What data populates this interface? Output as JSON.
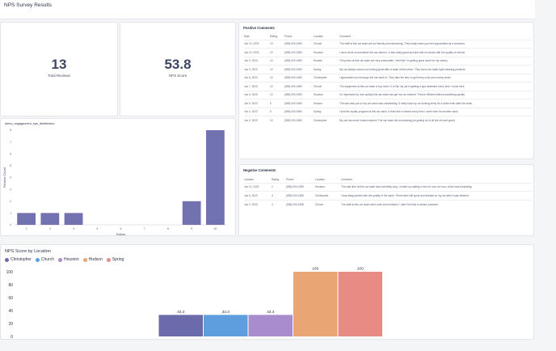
{
  "page": {
    "title": "NPS Survey Results"
  },
  "kpis": [
    {
      "value": "13",
      "label": "Total Reviews"
    },
    {
      "value": "53.8",
      "label": "NPS Score"
    }
  ],
  "positive_comments": {
    "title": "Positive Comments",
    "columns": [
      "Date",
      "Rating",
      "Phone",
      "Location",
      "Comment"
    ],
    "rows": [
      [
        "Jun 10, 2023",
        "10",
        "(555) 000-1550",
        "Church",
        "The staff at this car wash are so friendly and welcoming. They really make you feel appreciated as a customer."
      ],
      [
        "Jun 10, 2023",
        "10",
        "(555) 000-1550",
        "Houston",
        "I have never encountered this car wash in, it was really great and fast with no issues with the quality of service."
      ],
      [
        "Jun 9, 2023",
        "10",
        "(555) 000-1550",
        "Hudson",
        "The prices at this car wash are very reasonable. I feel like I'm getting great value for my money."
      ],
      [
        "Jun 9, 2023",
        "10",
        "(555) 000-1550",
        "Spring",
        "My car always comes out looking great after a wash at this place. They even use water-tight cleaning products."
      ],
      [
        "Jun 8, 2023",
        "10",
        "(555) 000-1550",
        "Christopher",
        "I appreciate how thorough the car wash is. They take the time to get every nook and cranny clean."
      ],
      [
        "Jun 7, 2023",
        "10",
        "(555) 000-1550",
        "Church",
        "The equipment at this car wash is top-notch. It is like my car is getting a spa treatment every time I come here."
      ],
      [
        "Jun 6, 2023",
        "10",
        "(555) 000-1550",
        "Houston",
        "I'm impressed by how quickly this car wash can get my car cleaned. They're efficient without sacrificing quality."
      ],
      [
        "Jun 5, 2023",
        "9",
        "(555) 000-1550",
        "Hudson",
        "The wax they put on my car wash was outstanding. It really kept my car looking shiny for a while even after the wash."
      ],
      [
        "Jun 4, 2023",
        "9",
        "(555) 000-1550",
        "Spring",
        "I love the loyalty program at this car wash. It feels like a reward every time I come here for another wash."
      ],
      [
        "Jun 3, 2023",
        "10",
        "(555) 000-1550",
        "Christopher",
        "My car has never looked cleaner! The car wash did an amazing job getting rid of all the dirt and grime."
      ]
    ]
  },
  "negative_comments": {
    "title": "Negative Comments",
    "columns": [
      "Location",
      "Rating",
      "Phone",
      "Location",
      "Comment"
    ],
    "rows": [
      [
        "Jun 10, 2023",
        "2",
        "(555) 000-1555",
        "Houston",
        "The wait time at this car wash was incredibly long. I ended up waiting in line for over an hour, which was frustrating."
      ],
      [
        "Jun 5, 2023",
        "3",
        "(555) 000-1555",
        "Christopher",
        "I was disappointed with the quality of the wash. There were still spots and streaks on my car after it was finished."
      ],
      [
        "Jun 2, 2023",
        "4",
        "(555) 000-1555",
        "Church",
        "The staff at this car wash were rude and unhelpful. I didn't feel like a valued customer."
      ]
    ]
  },
  "distribution_chart": {
    "title": "demo_engagement_nps_distribution",
    "bar_color": "#7372b0",
    "chart_data": {
      "type": "bar",
      "categories": [
        "2",
        "3",
        "4",
        "5",
        "6",
        "7",
        "8",
        "9",
        "10"
      ],
      "values": [
        1,
        1,
        1,
        0,
        0,
        0,
        0,
        2,
        8
      ],
      "xlabel": "Rating",
      "ylabel": "Review Count",
      "ylim": [
        0,
        8
      ],
      "yticks": [
        "0",
        "1",
        "2",
        "3",
        "4",
        "5",
        "6",
        "7",
        "8"
      ],
      "grid": false
    }
  },
  "location_chart": {
    "title": "NPS Score by Location",
    "chart_data": {
      "type": "bar",
      "categories": [
        "Christopher",
        "Church",
        "Houston",
        "Hudson",
        "Spring"
      ],
      "series": [
        {
          "name": "Christopher",
          "color": "#6b6aaa",
          "value": 33.3,
          "label": "33.3"
        },
        {
          "name": "Church",
          "color": "#5f9ede",
          "value": 33.3,
          "label": "33.3"
        },
        {
          "name": "Houston",
          "color": "#a98ccd",
          "value": 33.3,
          "label": "33.3"
        },
        {
          "name": "Hudson",
          "color": "#e9a574",
          "value": 100,
          "label": "100"
        },
        {
          "name": "Spring",
          "color": "#e88b85",
          "value": 100,
          "label": "100"
        }
      ],
      "ylim": [
        0,
        100
      ],
      "yticks": [
        "0",
        "20",
        "40",
        "60",
        "80",
        "100"
      ],
      "legend_position": "top-left",
      "grid": false
    }
  }
}
